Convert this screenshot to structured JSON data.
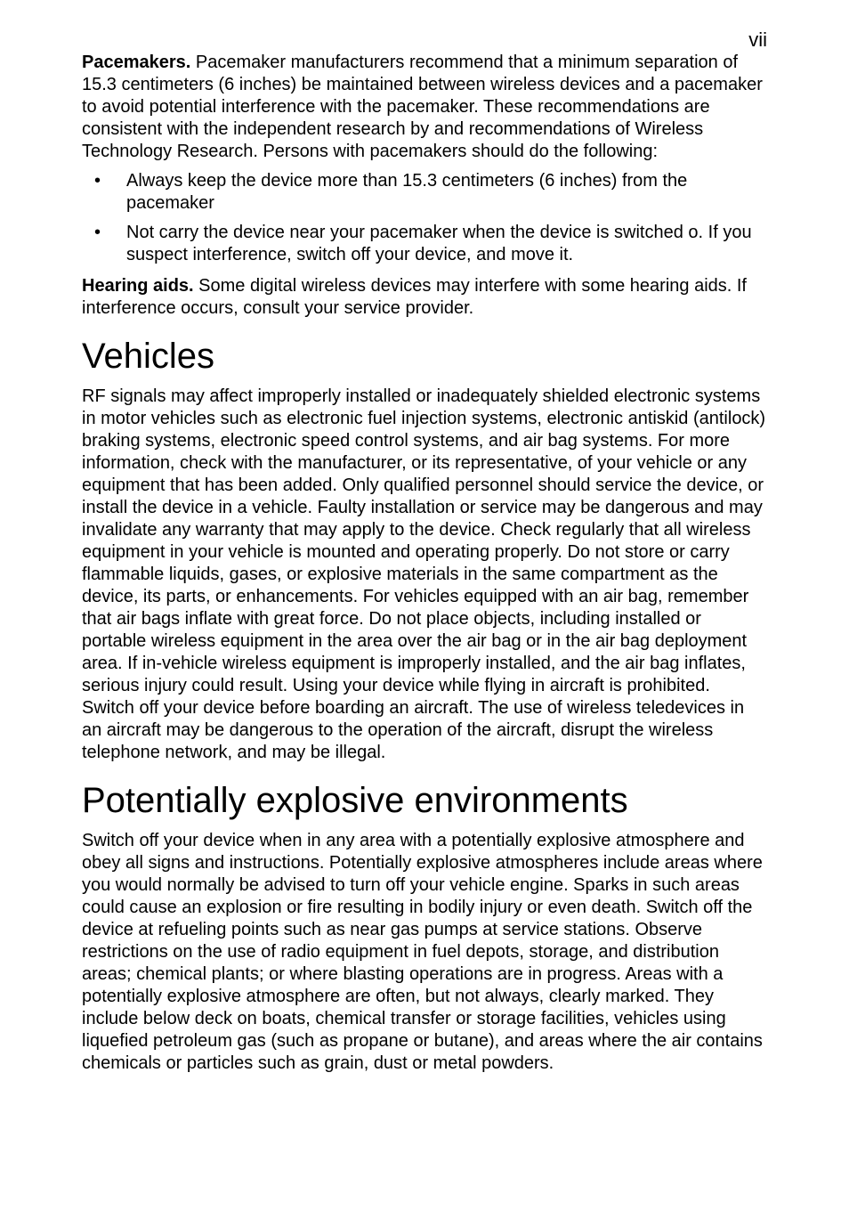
{
  "pageNumber": "vii",
  "pacemakers": {
    "runIn": "Pacemakers.",
    "para": " Pacemaker manufacturers recommend that a minimum separation of 15.3 centimeters (6 inches) be maintained between wireless devices and a pacemaker to avoid potential interference with the pacemaker. These recommendations are consistent with the independent research by and recommendations of Wireless Technology Research. Persons with pacemakers should do the following:",
    "bullets": [
      "Always keep the device more than 15.3 centimeters (6 inches) from the pacemaker",
      "Not carry the device near your pacemaker when the device is switched o. If you suspect interference, switch off your device, and move it."
    ]
  },
  "hearingAids": {
    "runIn": "Hearing aids.",
    "para": "  Some digital wireless devices may interfere with some hearing aids. If interference occurs, consult your service provider."
  },
  "vehicles": {
    "heading": "Vehicles",
    "para": "RF signals may affect improperly installed or inadequately shielded electronic systems in motor vehicles such as electronic fuel injection systems, electronic antiskid (antilock) braking systems, electronic speed control systems, and air bag systems. For more information, check with the manufacturer, or its representative, of your vehicle or any equipment that has been added. Only qualified personnel should service the device, or install the device in a vehicle. Faulty installation or service may be dangerous and may invalidate any warranty that may apply to the device. Check regularly that all wireless equipment in your vehicle is mounted and operating properly. Do not store or carry flammable liquids, gases, or explosive materials in the same compartment as the device, its parts, or enhancements. For vehicles equipped with an air bag, remember that air bags inflate with great force. Do not place objects, including installed or portable wireless equipment in the area over the air bag or in the air bag deployment area. If in-vehicle wireless equipment is improperly installed, and the air bag inflates, serious injury could result. Using your device while flying in aircraft is prohibited. Switch off your device before boarding an aircraft. The use of wireless teledevices in an aircraft may be dangerous to the operation of the aircraft, disrupt the wireless telephone network, and may be illegal."
  },
  "explosive": {
    "heading": "Potentially explosive environments",
    "para": "Switch off your device when in any area with a potentially explosive atmosphere and obey all signs and instructions. Potentially explosive atmospheres include areas where you would normally be advised to turn off your vehicle engine. Sparks in such areas could cause an explosion or fire resulting in bodily injury or even death. Switch off the device at refueling points such as near gas pumps at service stations. Observe restrictions on the use of radio equipment in fuel depots, storage, and distribution areas; chemical plants; or where blasting operations are in progress. Areas with a potentially explosive atmosphere are often, but not always, clearly marked. They include below deck on boats, chemical transfer or storage facilities, vehicles using liquefied petroleum gas (such as propane or butane), and areas where the air contains chemicals or particles such as grain, dust or metal powders."
  }
}
